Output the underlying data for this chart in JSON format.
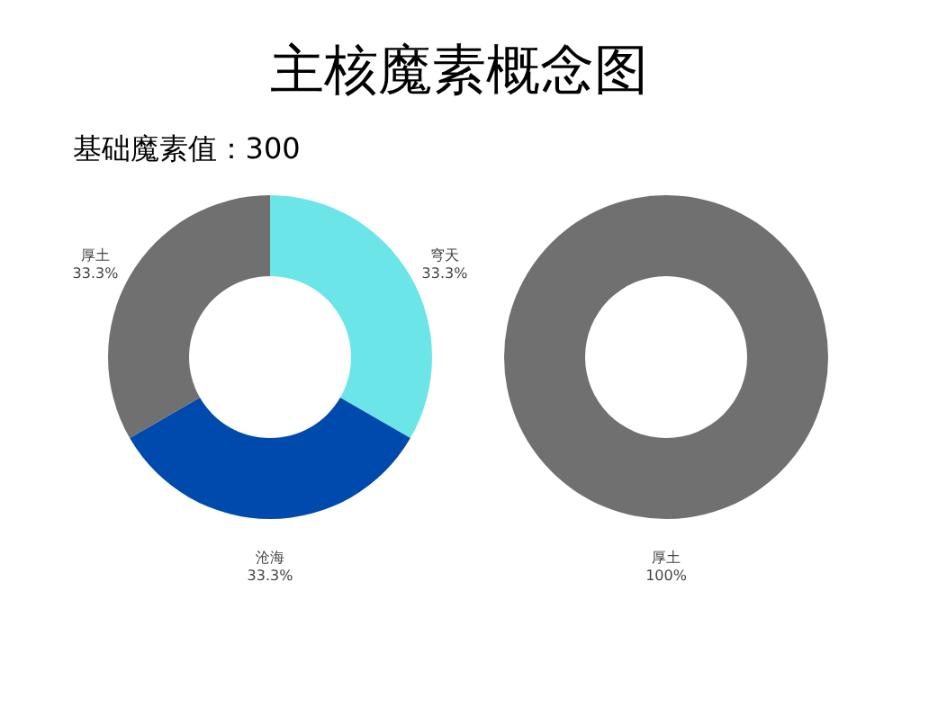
{
  "chart_data": [
    {
      "type": "donut",
      "title": "主核魔素概念图",
      "subtitle": "基础魔素值：300",
      "categories": [
        "穹天",
        "沧海",
        "厚土"
      ],
      "values": [
        33.3,
        33.3,
        33.3
      ],
      "colors": [
        "#6ce5e8",
        "#004aad",
        "#707070"
      ],
      "value_labels": [
        "33.3%",
        "33.3%",
        "33.3%"
      ],
      "legend": false
    },
    {
      "type": "donut",
      "categories": [
        "厚土"
      ],
      "values": [
        100
      ],
      "colors": [
        "#707070"
      ],
      "value_labels": [
        "100%"
      ],
      "legend": false
    }
  ]
}
